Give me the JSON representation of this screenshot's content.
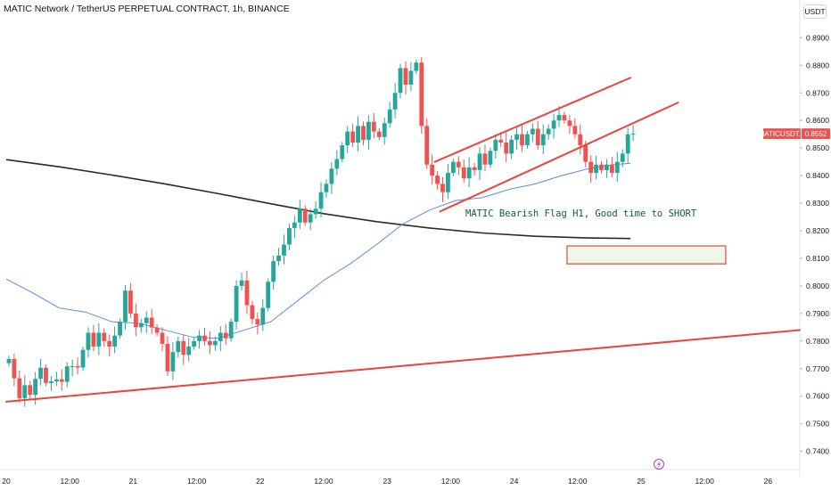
{
  "header": {
    "title": "MATIC Network / TetherUS PERPETUAL CONTRACT, 1h, BINANCE",
    "currency": "USDT"
  },
  "colors": {
    "up": "#26a69a",
    "down": "#ef5350",
    "ma_slow": "#2a2a2a",
    "ma_fast": "#5b8fd6",
    "trendline": "#e8453c",
    "zone_fill": "#eef7ea",
    "zone_border": "#e8453c",
    "annotation": "#0b5e3a",
    "event_icon": "#b33fb6"
  },
  "chart_data": {
    "type": "candlestick",
    "symbol": "MATICUSDT.P",
    "last_price": "0.8552",
    "annotation": "MATIC Bearish Flag H1, Good time to SHORT",
    "y_axis": {
      "ylim": [
        0.736,
        0.894
      ],
      "ticks": [
        "0.8900",
        "0.8800",
        "0.8700",
        "0.8600",
        "0.8500",
        "0.8400",
        "0.8300",
        "0.8200",
        "0.8100",
        "0.8000",
        "0.7900",
        "0.7800",
        "0.7700",
        "0.7600",
        "0.7500",
        "0.7400"
      ]
    },
    "x_axis": {
      "range_hours": [
        0,
        150
      ],
      "ticks": [
        {
          "label": "20",
          "h": 0
        },
        {
          "label": "12:00",
          "h": 12
        },
        {
          "label": "21",
          "h": 24
        },
        {
          "label": "12:00",
          "h": 36
        },
        {
          "label": "22",
          "h": 48
        },
        {
          "label": "12:00",
          "h": 60
        },
        {
          "label": "23",
          "h": 72
        },
        {
          "label": "12:00",
          "h": 84
        },
        {
          "label": "24",
          "h": 96
        },
        {
          "label": "12:00",
          "h": 108
        },
        {
          "label": "25",
          "h": 120
        },
        {
          "label": "12:00",
          "h": 132
        },
        {
          "label": "26",
          "h": 144
        }
      ]
    },
    "candles_close": [
      0.7735,
      0.7665,
      0.7593,
      0.764,
      0.7605,
      0.7663,
      0.7703,
      0.7648,
      0.7654,
      0.7661,
      0.7652,
      0.7708,
      0.7709,
      0.7704,
      0.7768,
      0.783,
      0.778,
      0.783,
      0.78,
      0.778,
      0.782,
      0.787,
      0.7983,
      0.79,
      0.785,
      0.7865,
      0.7885,
      0.7849,
      0.783,
      0.779,
      0.769,
      0.776,
      0.78,
      0.775,
      0.778,
      0.78,
      0.782,
      0.78,
      0.7785,
      0.78,
      0.783,
      0.781,
      0.787,
      0.8,
      0.802,
      0.793,
      0.788,
      0.786,
      0.792,
      0.8015,
      0.809,
      0.811,
      0.815,
      0.821,
      0.823,
      0.828,
      0.823,
      0.826,
      0.828,
      0.834,
      0.837,
      0.8425,
      0.846,
      0.851,
      0.856,
      0.852,
      0.858,
      0.853,
      0.8595,
      0.856,
      0.854,
      0.859,
      0.864,
      0.87,
      0.879,
      0.873,
      0.878,
      0.881,
      0.858,
      0.844,
      0.84,
      0.837,
      0.834,
      0.841,
      0.845,
      0.843,
      0.839,
      0.843,
      0.842,
      0.848,
      0.844,
      0.849,
      0.853,
      0.852,
      0.848,
      0.853,
      0.855,
      0.851,
      0.855,
      0.857,
      0.851,
      0.855,
      0.857,
      0.86,
      0.862,
      0.86,
      0.858,
      0.855,
      0.851,
      0.845,
      0.841,
      0.844,
      0.842,
      0.844,
      0.841,
      0.845,
      0.848,
      0.855,
      0.8552
    ],
    "ma_200_points": [
      [
        0,
        0.8458
      ],
      [
        10,
        0.8432
      ],
      [
        20,
        0.8402
      ],
      [
        30,
        0.837
      ],
      [
        40,
        0.8335
      ],
      [
        50,
        0.8298
      ],
      [
        60,
        0.8262
      ],
      [
        70,
        0.8233
      ],
      [
        80,
        0.821
      ],
      [
        90,
        0.8192
      ],
      [
        100,
        0.818
      ],
      [
        110,
        0.8174
      ],
      [
        118,
        0.8172
      ]
    ],
    "ma_50_points": [
      [
        0,
        0.8025
      ],
      [
        5,
        0.7975
      ],
      [
        10,
        0.792
      ],
      [
        15,
        0.7905
      ],
      [
        20,
        0.787
      ],
      [
        25,
        0.7865
      ],
      [
        30,
        0.784
      ],
      [
        35,
        0.7815
      ],
      [
        40,
        0.781
      ],
      [
        45,
        0.784
      ],
      [
        50,
        0.787
      ],
      [
        55,
        0.7945
      ],
      [
        60,
        0.802
      ],
      [
        65,
        0.808
      ],
      [
        70,
        0.815
      ],
      [
        75,
        0.8225
      ],
      [
        80,
        0.8275
      ],
      [
        85,
        0.831
      ],
      [
        90,
        0.832
      ],
      [
        95,
        0.835
      ],
      [
        100,
        0.837
      ],
      [
        105,
        0.84
      ],
      [
        110,
        0.8425
      ],
      [
        115,
        0.844
      ],
      [
        118,
        0.8445
      ]
    ],
    "drawings": {
      "support_line": [
        [
          0,
          0.758
        ],
        [
          150,
          0.784
        ]
      ],
      "flag_upper": [
        [
          81,
          0.845
        ],
        [
          118,
          0.8755
        ]
      ],
      "flag_lower": [
        [
          82,
          0.827
        ],
        [
          127,
          0.8665
        ]
      ],
      "target_zone": {
        "h1": 106,
        "h2": 136,
        "y_top": 0.8145,
        "y_bottom": 0.808
      }
    }
  }
}
